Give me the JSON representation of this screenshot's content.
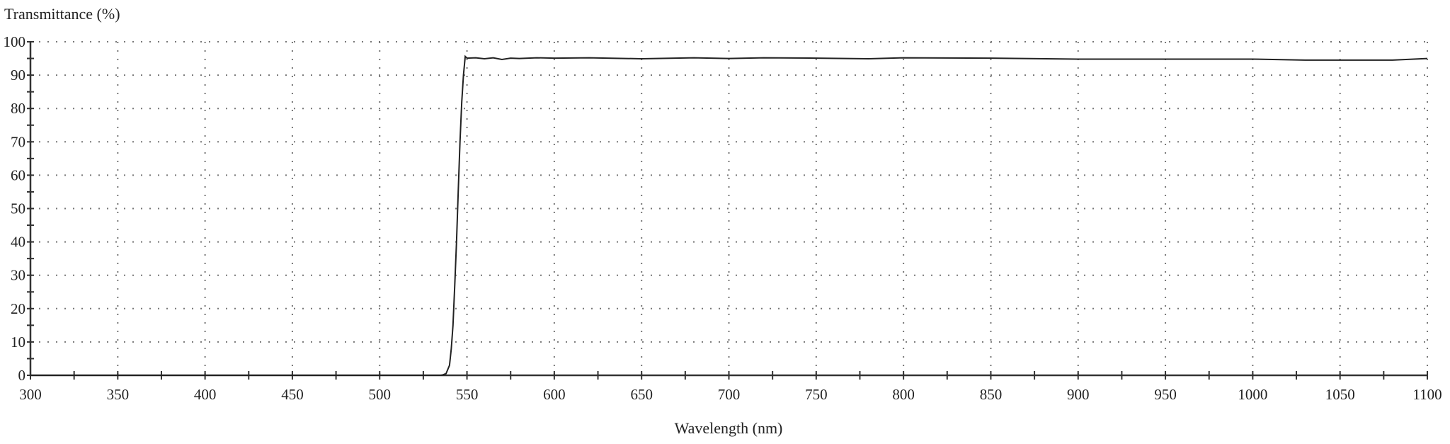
{
  "chart_data": {
    "type": "line",
    "title": "",
    "ylabel": "Transmittance (%)",
    "xlabel": "Wavelength (nm)",
    "xlim": [
      300,
      1100
    ],
    "ylim": [
      0,
      100
    ],
    "x_ticks": [
      300,
      350,
      400,
      450,
      500,
      550,
      600,
      650,
      700,
      750,
      800,
      850,
      900,
      950,
      1000,
      1050,
      1100
    ],
    "y_ticks": [
      0,
      10,
      20,
      30,
      40,
      50,
      60,
      70,
      80,
      90,
      100
    ],
    "grid": true,
    "line_color": "#222222",
    "series": [
      {
        "x": [
          300,
          535,
          536,
          538,
          540,
          541,
          542,
          543,
          544,
          545,
          546,
          547,
          548,
          549,
          550,
          555,
          560,
          565,
          570,
          575,
          580,
          590,
          600,
          620,
          650,
          680,
          700,
          720,
          750,
          780,
          800,
          850,
          900,
          950,
          1000,
          1030,
          1080,
          1100
        ],
        "y": [
          0,
          0,
          0.1,
          0.5,
          3,
          8,
          15,
          27,
          40,
          55,
          70,
          82,
          90,
          95.6,
          95.1,
          95.2,
          94.9,
          95.2,
          94.7,
          95.1,
          95.0,
          95.2,
          95.1,
          95.2,
          94.9,
          95.2,
          95.0,
          95.2,
          95.1,
          94.9,
          95.2,
          95.1,
          94.8,
          94.8,
          94.8,
          94.5,
          94.5,
          95.0
        ]
      }
    ]
  }
}
